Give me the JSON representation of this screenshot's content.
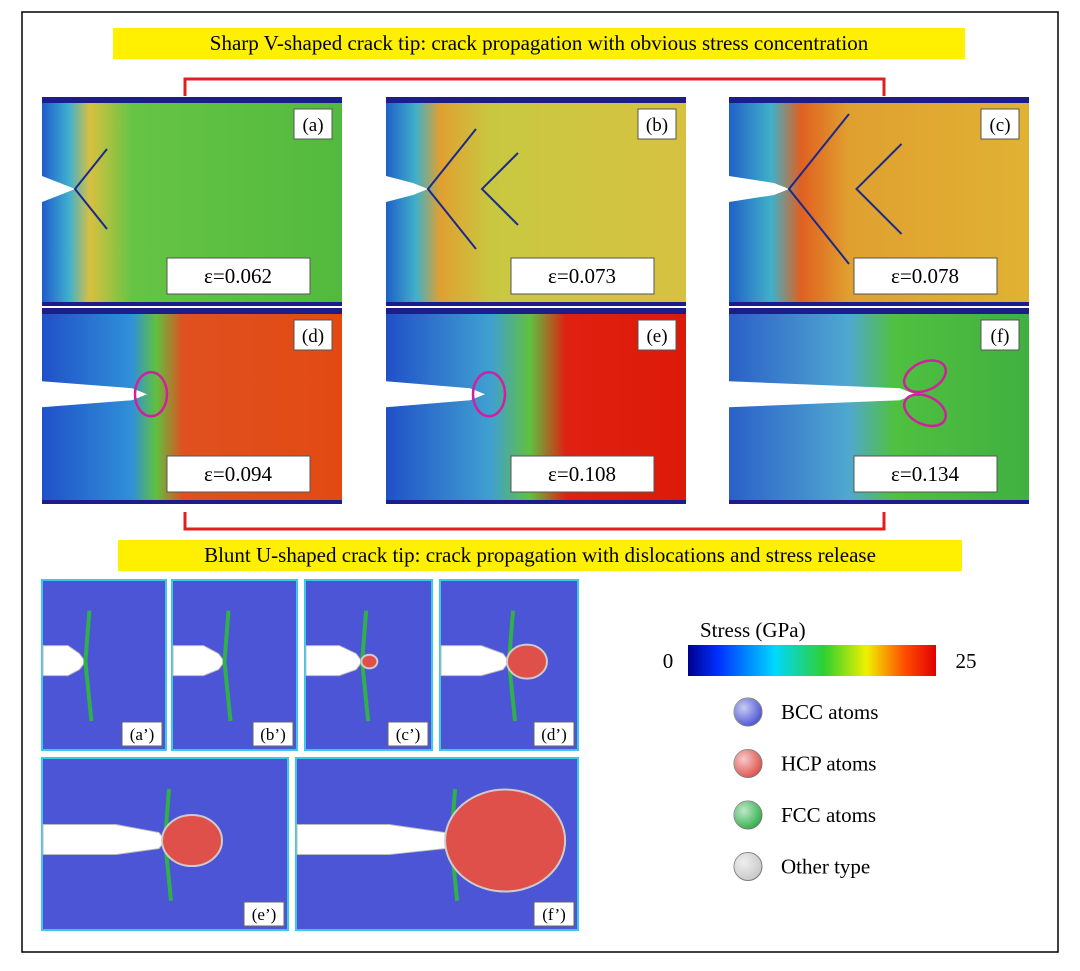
{
  "top_banner": "Sharp V-shaped crack tip: crack propagation with obvious stress concentration",
  "bottom_banner": "Blunt U-shaped crack tip: crack propagation with dislocations and stress release",
  "stress_panels": [
    {
      "label": "(a)",
      "strain": "ε=0.062"
    },
    {
      "label": "(b)",
      "strain": "ε=0.073"
    },
    {
      "label": "(c)",
      "strain": "ε=0.078"
    },
    {
      "label": "(d)",
      "strain": "ε=0.094"
    },
    {
      "label": "(e)",
      "strain": "ε=0.108"
    },
    {
      "label": "(f)",
      "strain": "ε=0.134"
    }
  ],
  "structure_panels": [
    {
      "label": "(a’)"
    },
    {
      "label": "(b’)"
    },
    {
      "label": "(c’)"
    },
    {
      "label": "(d’)"
    },
    {
      "label": "(e’)"
    },
    {
      "label": "(f’)"
    }
  ],
  "colorbar": {
    "title": "Stress (GPa)",
    "min": "0",
    "max": "25"
  },
  "legend": [
    {
      "name": "BCC atoms",
      "color": "#4b55d6"
    },
    {
      "name": "HCP atoms",
      "color": "#e0504a"
    },
    {
      "name": "FCC atoms",
      "color": "#2fb04a"
    },
    {
      "name": "Other type",
      "color": "#c8c8c8"
    }
  ]
}
